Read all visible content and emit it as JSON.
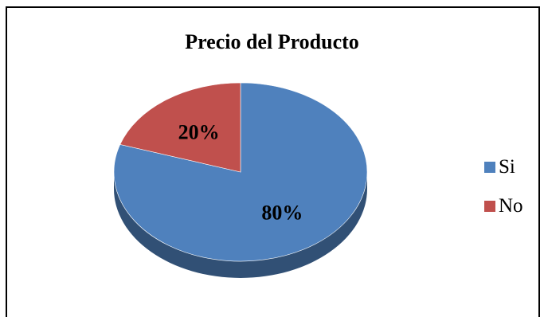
{
  "chart_data": {
    "type": "pie",
    "title": "Precio del Producto",
    "categories": [
      "Si",
      "No"
    ],
    "values": [
      80,
      20
    ],
    "labels": [
      "80%",
      "20%"
    ],
    "colors": [
      "#4F81BD",
      "#C0504D"
    ],
    "legend": "right",
    "style": "3d"
  }
}
